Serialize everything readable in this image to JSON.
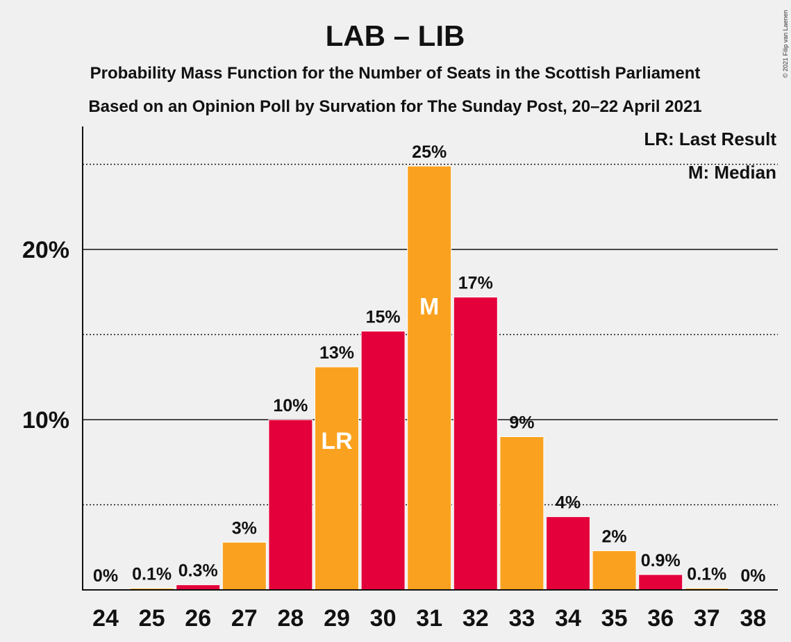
{
  "title": "LAB – LIB",
  "subtitle1": "Probability Mass Function for the Number of Seats in the Scottish Parliament",
  "subtitle2": "Based on an Opinion Poll by Survation for The Sunday Post, 20–22 April 2021",
  "copyright": "© 2021 Filip van Laenen",
  "legend": {
    "last_result": "LR: Last Result",
    "median": "M: Median"
  },
  "colors": {
    "red": "#e4003b",
    "orange": "#faa21f"
  },
  "chart_data": {
    "type": "bar",
    "categories": [
      "24",
      "25",
      "26",
      "27",
      "28",
      "29",
      "30",
      "31",
      "32",
      "33",
      "34",
      "35",
      "36",
      "37",
      "38"
    ],
    "values": [
      0,
      0.1,
      0.3,
      2.8,
      10.0,
      13.1,
      15.2,
      24.9,
      17.2,
      9.0,
      4.3,
      2.3,
      0.9,
      0.1,
      0
    ],
    "value_labels": [
      "0%",
      "0.1%",
      "0.3%",
      "3%",
      "10%",
      "13%",
      "15%",
      "25%",
      "17%",
      "9%",
      "4%",
      "2%",
      "0.9%",
      "0.1%",
      "0%"
    ],
    "bar_colors": [
      "red",
      "orange",
      "red",
      "orange",
      "red",
      "orange",
      "red",
      "orange",
      "red",
      "orange",
      "red",
      "orange",
      "red",
      "orange",
      "red"
    ],
    "markers": {
      "29": "LR",
      "31": "M"
    },
    "y_ticks": [
      {
        "value": 10,
        "label": "10%"
      },
      {
        "value": 20,
        "label": "20%"
      }
    ],
    "dotted_gridlines": [
      5,
      15,
      25
    ],
    "ylim": [
      0,
      27
    ]
  }
}
